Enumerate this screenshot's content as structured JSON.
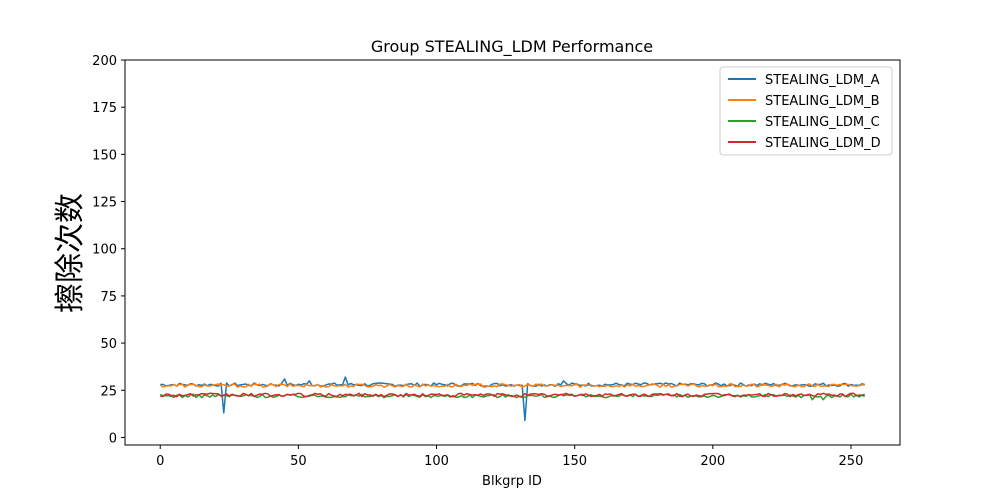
{
  "chart_data": {
    "type": "line",
    "title": "Group STEALING_LDM Performance",
    "xlabel": "Blkgrp ID",
    "ylabel": "擦除次数",
    "xlim": [
      -12.75,
      267.75
    ],
    "ylim": [
      -4,
      200
    ],
    "xticks": [
      0,
      50,
      100,
      150,
      200,
      250
    ],
    "yticks": [
      0,
      25,
      50,
      75,
      100,
      125,
      150,
      175,
      200
    ],
    "x_range": [
      0,
      255
    ],
    "legend_position": "top-right",
    "grid": false,
    "series": [
      {
        "name": "STEALING_LDM_A",
        "color": "#1f77b4",
        "base": 28,
        "spikes": [
          [
            23,
            13
          ],
          [
            45,
            31
          ],
          [
            54,
            30
          ],
          [
            67,
            32
          ],
          [
            132,
            9
          ],
          [
            146,
            30
          ]
        ]
      },
      {
        "name": "STEALING_LDM_B",
        "color": "#ff7f0e",
        "base": 27.5,
        "spikes": []
      },
      {
        "name": "STEALING_LDM_C",
        "color": "#2ca02c",
        "base": 22,
        "spikes": [
          [
            236,
            20
          ],
          [
            240,
            20
          ]
        ]
      },
      {
        "name": "STEALING_LDM_D",
        "color": "#d62728",
        "base": 22.5,
        "spikes": []
      }
    ]
  }
}
